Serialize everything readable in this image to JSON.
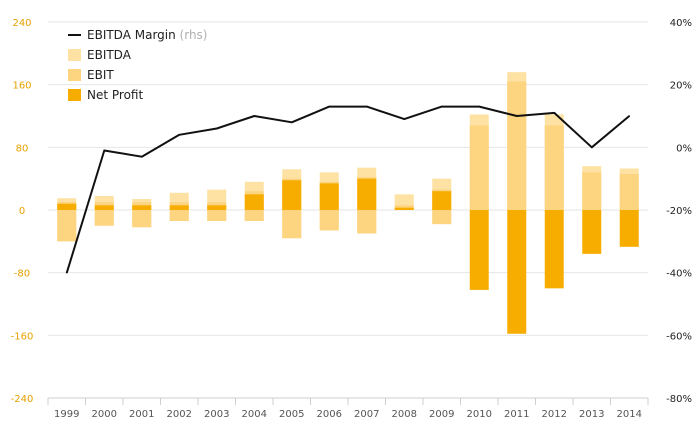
{
  "chart_data": {
    "type": "bar",
    "categories": [
      "1999",
      "2000",
      "2001",
      "2002",
      "2003",
      "2004",
      "2005",
      "2006",
      "2007",
      "2008",
      "2009",
      "2010",
      "2011",
      "2012",
      "2013",
      "2014"
    ],
    "series": [
      {
        "name": "EBITDA",
        "kind": "bar",
        "color": "#fde2a3",
        "positive": [
          15,
          18,
          14,
          22,
          26,
          36,
          52,
          48,
          54,
          20,
          40,
          122,
          176,
          122,
          56,
          53
        ],
        "negative": [
          -40,
          -20,
          -22,
          -14,
          -14,
          -14,
          -36,
          -26,
          -30,
          0,
          -18,
          0,
          0,
          0,
          0,
          0
        ]
      },
      {
        "name": "EBIT",
        "kind": "bar",
        "color": "#fdd47f",
        "positive": [
          10,
          10,
          10,
          10,
          10,
          24,
          40,
          36,
          42,
          6,
          26,
          108,
          164,
          108,
          48,
          46
        ],
        "negative": [
          -40,
          -20,
          -22,
          -14,
          -14,
          -14,
          -36,
          -26,
          -30,
          0,
          -18,
          0,
          0,
          0,
          0,
          0
        ]
      },
      {
        "name": "Net Profit",
        "kind": "bar",
        "color": "#f7ad00",
        "positive": [
          8,
          6,
          6,
          6,
          6,
          20,
          38,
          34,
          40,
          3,
          24,
          0,
          0,
          0,
          0,
          0
        ],
        "negative": [
          0,
          0,
          0,
          0,
          0,
          0,
          0,
          0,
          0,
          0,
          0,
          -102,
          -158,
          -100,
          -56,
          -47
        ]
      },
      {
        "name": "EBITDA Margin",
        "name_suffix": "(rhs)",
        "kind": "line",
        "axis": "right",
        "color": "#111111",
        "values": [
          -40,
          -1,
          -3,
          4,
          6,
          10,
          8,
          13,
          13,
          9,
          13,
          13,
          10,
          11,
          0,
          10
        ]
      }
    ],
    "y_left": {
      "ylim": [
        -240,
        240
      ],
      "ticks": [
        "240",
        "160",
        "80",
        "0",
        "-80",
        "-160",
        "-240"
      ],
      "tick_values": [
        240,
        160,
        80,
        0,
        -80,
        -160,
        -240
      ]
    },
    "y_right": {
      "ylim": [
        -80,
        40
      ],
      "ticks": [
        "40%",
        "20%",
        "0%",
        "-20%",
        "-40%",
        "-60%",
        "-80%"
      ],
      "tick_values": [
        40,
        20,
        0,
        -20,
        -40,
        -60,
        -80
      ]
    },
    "grid": true,
    "legend": "top-left",
    "title": "",
    "xlabel": "",
    "ylabel": ""
  }
}
